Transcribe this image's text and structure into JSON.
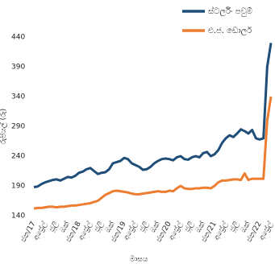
{
  "chart_data": {
    "type": "line",
    "x_label": "මාසය",
    "y_label": "රුපියල් (රු)",
    "categories": [
      "ජන/17",
      null,
      null,
      "අප්‍රේල්",
      null,
      null,
      "ජූලි",
      null,
      null,
      "ඔක්",
      null,
      null,
      "ජන/18",
      null,
      null,
      "අප්‍රේල්",
      null,
      null,
      "ජූලි",
      null,
      null,
      "ඔක්",
      null,
      null,
      "ජන/19",
      null,
      null,
      "අප්‍රේල්",
      null,
      null,
      "ජූලි",
      null,
      null,
      "ඔක්",
      null,
      null,
      "ජන/20",
      null,
      null,
      "අප්‍රේල්",
      null,
      null,
      "ජූලි",
      null,
      null,
      "ඔක්",
      null,
      null,
      "ජන/21",
      null,
      null,
      "අප්‍රේල්",
      null,
      null,
      "ජූලි",
      null,
      null,
      "ඔක්",
      null,
      null,
      "ජන/22",
      null,
      null,
      "අප්‍රේල්"
    ],
    "series": [
      {
        "name": "ස්ටර්ලිං පවුම්",
        "color": "#1f4e79",
        "values": [
          188,
          189,
          193,
          196,
          198,
          200,
          201,
          199,
          202,
          205,
          204,
          207,
          212,
          214,
          218,
          220,
          215,
          210,
          212,
          213,
          218,
          228,
          230,
          232,
          237,
          235,
          228,
          225,
          222,
          217,
          218,
          222,
          228,
          232,
          235,
          236,
          235,
          233,
          238,
          240,
          235,
          234,
          238,
          240,
          238,
          245,
          247,
          240,
          243,
          250,
          262,
          270,
          275,
          272,
          278,
          285,
          282,
          278,
          284,
          270,
          268,
          270,
          390,
          430
        ]
      },
      {
        "name": "එ.ජ. ඩොලර්",
        "color": "#ed7d31",
        "values": [
          152,
          153,
          153,
          154,
          155,
          155,
          154,
          155,
          155,
          156,
          157,
          157,
          158,
          159,
          160,
          161,
          163,
          165,
          170,
          175,
          178,
          181,
          182,
          181,
          180,
          179,
          177,
          176,
          176,
          177,
          178,
          179,
          180,
          181,
          180,
          180,
          182,
          181,
          186,
          190,
          186,
          185,
          185,
          186,
          186,
          187,
          187,
          186,
          190,
          196,
          199,
          199,
          200,
          201,
          201,
          200,
          211,
          200,
          202,
          202,
          202,
          202,
          300,
          340
        ]
      }
    ],
    "ylim": [
      140,
      440
    ],
    "yticks": [
      140,
      190,
      240,
      290,
      340,
      390,
      440
    ],
    "grid": false,
    "legend": "top-right"
  }
}
